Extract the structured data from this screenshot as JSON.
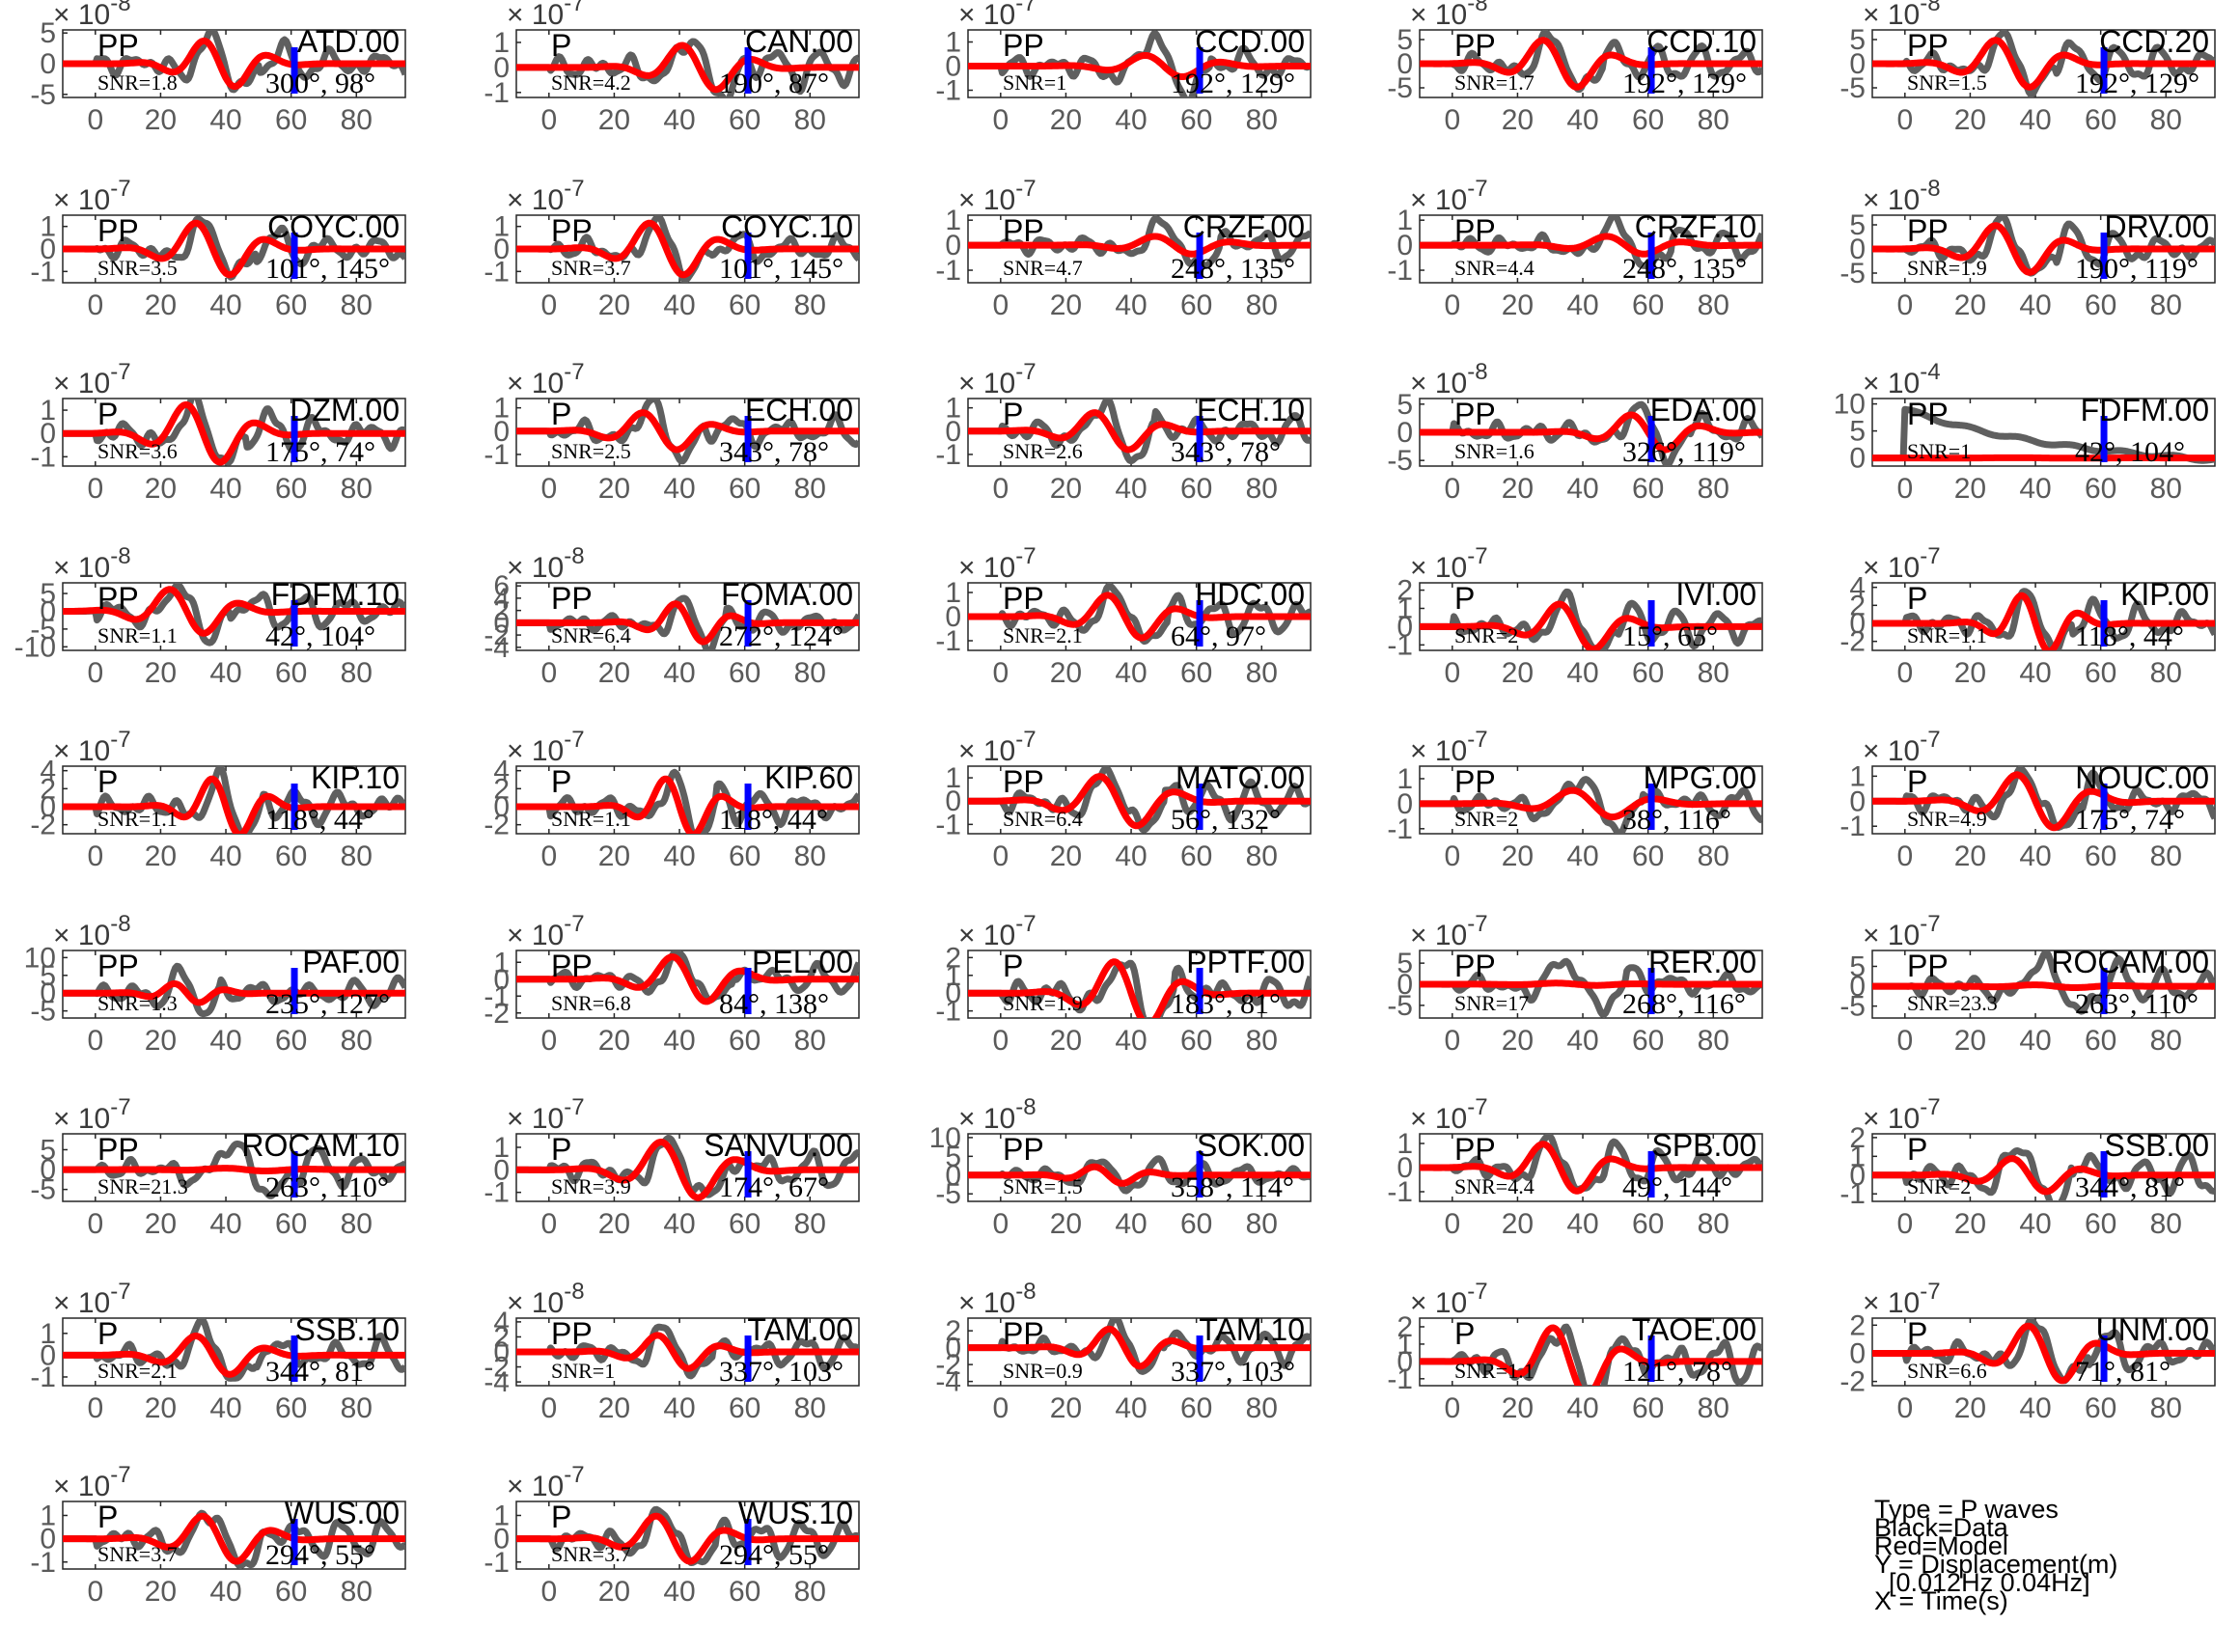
{
  "legend": {
    "line1": "Type = P waves",
    "line2": "Black=Data",
    "line3": "Red=Model",
    "line4": "Y = Displacement(m)",
    "line5": "  [0.012Hz 0.04Hz]",
    "line6": "X = Time(s)"
  },
  "colors": {
    "data": "#5f5f5f",
    "model": "#ff0000",
    "marker": "#0000ff",
    "axes": "#262626"
  },
  "chart_data": {
    "type": "line",
    "x_ticks": [
      0,
      20,
      40,
      60,
      80
    ],
    "xlim": [
      -10,
      95
    ],
    "marker_time": 61,
    "panels": [
      {
        "station": "ATD.00",
        "phase": "PP",
        "snr": "SNR=1.8",
        "azim": "300°, 98°",
        "exp": "-8",
        "yticks": [
          "5",
          "0",
          "-5"
        ],
        "ytv": [
          5,
          0,
          -5
        ],
        "ylim": [
          -5.5,
          5.5
        ],
        "data_amp": 5.0,
        "model_amp": 4.2,
        "t0": 40,
        "period": 20
      },
      {
        "station": "CAN.00",
        "phase": "P",
        "snr": "SNR=4.2",
        "azim": "190°, 87°",
        "exp": "-7",
        "yticks": [
          "1",
          "0",
          "-1"
        ],
        "ytv": [
          1,
          0,
          -1
        ],
        "ylim": [
          -1.2,
          1.5
        ],
        "data_amp": 1.3,
        "model_amp": 1.0,
        "t0": 48,
        "period": 22
      },
      {
        "station": "CCD.00",
        "phase": "PP",
        "snr": "SNR=1",
        "azim": "192°, 129°",
        "exp": "-7",
        "yticks": [
          "1",
          "0",
          "-1"
        ],
        "ytv": [
          1,
          0,
          -1
        ],
        "ylim": [
          -1.3,
          1.5
        ],
        "data_amp": 1.3,
        "model_amp": 0.5,
        "t0": 52,
        "period": 24
      },
      {
        "station": "CCD.10",
        "phase": "PP",
        "snr": "SNR=1.7",
        "azim": "192°, 129°",
        "exp": "-8",
        "yticks": [
          "5",
          "0",
          "-5"
        ],
        "ytv": [
          5,
          0,
          -5
        ],
        "ylim": [
          -7,
          7
        ],
        "data_amp": 6.0,
        "model_amp": 5.5,
        "t0": 35,
        "period": 22
      },
      {
        "station": "CCD.20",
        "phase": "PP",
        "snr": "SNR=1.5",
        "azim": "192°, 129°",
        "exp": "-8",
        "yticks": [
          "5",
          "0",
          "-5"
        ],
        "ytv": [
          5,
          0,
          -5
        ],
        "ylim": [
          -7,
          7
        ],
        "data_amp": 6.0,
        "model_amp": 5.5,
        "t0": 35,
        "period": 22
      },
      {
        "station": "COYC.00",
        "phase": "PP",
        "snr": "SNR=3.5",
        "azim": "101°, 145°",
        "exp": "-7",
        "yticks": [
          "1",
          "0",
          "-1"
        ],
        "ytv": [
          1,
          0,
          -1
        ],
        "ylim": [
          -1.5,
          1.5
        ],
        "data_amp": 1.3,
        "model_amp": 1.3,
        "t0": 38,
        "period": 22
      },
      {
        "station": "COYC.10",
        "phase": "PP",
        "snr": "SNR=3.7",
        "azim": "101°, 145°",
        "exp": "-7",
        "yticks": [
          "1",
          "0",
          "-1"
        ],
        "ytv": [
          1,
          0,
          -1
        ],
        "ylim": [
          -1.5,
          1.5
        ],
        "data_amp": 1.3,
        "model_amp": 1.3,
        "t0": 38,
        "period": 22
      },
      {
        "station": "CRZF.00",
        "phase": "PP",
        "snr": "SNR=4.7",
        "azim": "248°, 135°",
        "exp": "-7",
        "yticks": [
          "1",
          "0",
          "-1"
        ],
        "ytv": [
          1,
          0,
          -1
        ],
        "ylim": [
          -1.5,
          1.2
        ],
        "data_amp": 1.0,
        "model_amp": 0.4,
        "t0": 55,
        "period": 24
      },
      {
        "station": "CRZF.10",
        "phase": "PP",
        "snr": "SNR=4.4",
        "azim": "248°, 135°",
        "exp": "-7",
        "yticks": [
          "1",
          "0",
          "-1"
        ],
        "ytv": [
          1,
          0,
          -1
        ],
        "ylim": [
          -1.5,
          1.2
        ],
        "data_amp": 1.0,
        "model_amp": 0.4,
        "t0": 55,
        "period": 24
      },
      {
        "station": "DRV.00",
        "phase": "PP",
        "snr": "SNR=1.9",
        "azim": "190°, 119°",
        "exp": "-8",
        "yticks": [
          "5",
          "0",
          "-5"
        ],
        "ytv": [
          5,
          0,
          -5
        ],
        "ylim": [
          -7,
          7
        ],
        "data_amp": 6.0,
        "model_amp": 5.5,
        "t0": 35,
        "period": 22
      },
      {
        "station": "DZM.00",
        "phase": "P",
        "snr": "SNR=3.6",
        "azim": "175°, 74°",
        "exp": "-7",
        "yticks": [
          "1",
          "0",
          "-1"
        ],
        "ytv": [
          1,
          0,
          -1
        ],
        "ylim": [
          -1.4,
          1.5
        ],
        "data_amp": 1.4,
        "model_amp": 1.4,
        "t0": 35,
        "period": 22
      },
      {
        "station": "ECH.00",
        "phase": "P",
        "snr": "SNR=2.5",
        "azim": "343°, 78°",
        "exp": "-7",
        "yticks": [
          "1",
          "0",
          "-1"
        ],
        "ytv": [
          1,
          0,
          -1
        ],
        "ylim": [
          -1.5,
          1.4
        ],
        "data_amp": 1.3,
        "model_amp": 0.9,
        "t0": 36,
        "period": 22
      },
      {
        "station": "ECH.10",
        "phase": "P",
        "snr": "SNR=2.6",
        "azim": "343°, 78°",
        "exp": "-7",
        "yticks": [
          "1",
          "0",
          "-1"
        ],
        "ytv": [
          1,
          0,
          -1
        ],
        "ylim": [
          -1.5,
          1.4
        ],
        "data_amp": 1.3,
        "model_amp": 0.9,
        "t0": 36,
        "period": 22
      },
      {
        "station": "EDA.00",
        "phase": "PP",
        "snr": "SNR=1.6",
        "azim": "326°, 119°",
        "exp": "-8",
        "yticks": [
          "5",
          "0",
          "-5"
        ],
        "ytv": [
          5,
          0,
          -5
        ],
        "ylim": [
          -6,
          6
        ],
        "data_amp": 5.0,
        "model_amp": 3.5,
        "t0": 62,
        "period": 22
      },
      {
        "station": "FDFM.00",
        "phase": "PP",
        "snr": "SNR=1",
        "azim": "42°, 104°",
        "exp": "-4",
        "yticks": [
          "10",
          "5",
          "0"
        ],
        "ytv": [
          10,
          5,
          0
        ],
        "ylim": [
          -1.5,
          11
        ],
        "data_amp": 9.0,
        "model_amp": 0.05,
        "t0": 45,
        "period": 40
      },
      {
        "station": "FDFM.10",
        "phase": "PP",
        "snr": "SNR=1.1",
        "azim": "42°, 104°",
        "exp": "-8",
        "yticks": [
          "5",
          "0",
          "-5",
          "-10"
        ],
        "ytv": [
          5,
          0,
          -5,
          -10
        ],
        "ylim": [
          -11,
          8
        ],
        "data_amp": 8.0,
        "model_amp": 7.0,
        "t0": 30,
        "period": 22
      },
      {
        "station": "FOMA.00",
        "phase": "PP",
        "snr": "SNR=6.4",
        "azim": "272°, 124°",
        "exp": "-8",
        "yticks": [
          "6",
          "4",
          "2",
          "0",
          "-2",
          "-4"
        ],
        "ytv": [
          6,
          4,
          2,
          0,
          -2,
          -4
        ],
        "ylim": [
          -4.5,
          6.5
        ],
        "data_amp": 4.0,
        "model_amp": 3.5,
        "t0": 45,
        "period": 18
      },
      {
        "station": "HDC.00",
        "phase": "PP",
        "snr": "SNR=2.1",
        "azim": "64°, 97°",
        "exp": "-7",
        "yticks": [
          "1",
          "0",
          "-1"
        ],
        "ytv": [
          1,
          0,
          -1
        ],
        "ylim": [
          -1.4,
          1.4
        ],
        "data_amp": 1.2,
        "model_amp": 1.0,
        "t0": 40,
        "period": 22
      },
      {
        "station": "IVI.00",
        "phase": "P",
        "snr": "SNR=2",
        "azim": "15°, 65°",
        "exp": "-7",
        "yticks": [
          "2",
          "1",
          "0",
          "-1"
        ],
        "ytv": [
          2,
          1,
          0,
          -1
        ],
        "ylim": [
          -1.3,
          2.4
        ],
        "data_amp": 1.6,
        "model_amp": 1.4,
        "t0": 40,
        "period": 22
      },
      {
        "station": "KIP.00",
        "phase": "P",
        "snr": "SNR=1.1",
        "azim": "118°, 44°",
        "exp": "-7",
        "yticks": [
          "4",
          "2",
          "0",
          "-2"
        ],
        "ytv": [
          4,
          2,
          0,
          -2
        ],
        "ylim": [
          -3,
          4.5
        ],
        "data_amp": 3.5,
        "model_amp": 3.5,
        "t0": 42,
        "period": 18
      },
      {
        "station": "KIP.10",
        "phase": "P",
        "snr": "SNR=1.1",
        "azim": "118°, 44°",
        "exp": "-7",
        "yticks": [
          "4",
          "2",
          "0",
          "-2"
        ],
        "ytv": [
          4,
          2,
          0,
          -2
        ],
        "ylim": [
          -3,
          4.5
        ],
        "data_amp": 3.5,
        "model_amp": 3.5,
        "t0": 42,
        "period": 18
      },
      {
        "station": "KIP.60",
        "phase": "P",
        "snr": "SNR=1.1",
        "azim": "118°, 44°",
        "exp": "-7",
        "yticks": [
          "4",
          "2",
          "0",
          "-2"
        ],
        "ytv": [
          4,
          2,
          0,
          -2
        ],
        "ylim": [
          -3,
          4.5
        ],
        "data_amp": 3.5,
        "model_amp": 3.5,
        "t0": 42,
        "period": 18
      },
      {
        "station": "MATO.00",
        "phase": "PP",
        "snr": "SNR=6.4",
        "azim": "56°, 132°",
        "exp": "-7",
        "yticks": [
          "1",
          "0",
          "-1"
        ],
        "ytv": [
          1,
          0,
          -1
        ],
        "ylim": [
          -1.4,
          1.5
        ],
        "data_amp": 1.3,
        "model_amp": 1.2,
        "t0": 38,
        "period": 24
      },
      {
        "station": "MPG.00",
        "phase": "PP",
        "snr": "SNR=2",
        "azim": "38°, 116°",
        "exp": "-7",
        "yticks": [
          "1",
          "0",
          "-1"
        ],
        "ytv": [
          1,
          0,
          -1
        ],
        "ylim": [
          -1.2,
          1.5
        ],
        "data_amp": 1.1,
        "model_amp": 0.6,
        "t0": 45,
        "period": 26
      },
      {
        "station": "NOUC.00",
        "phase": "P",
        "snr": "SNR=4.9",
        "azim": "175°, 74°",
        "exp": "-7",
        "yticks": [
          "1",
          "0",
          "-1"
        ],
        "ytv": [
          1,
          0,
          -1
        ],
        "ylim": [
          -1.3,
          1.4
        ],
        "data_amp": 1.2,
        "model_amp": 1.2,
        "t0": 42,
        "period": 24
      },
      {
        "station": "PAF.00",
        "phase": "PP",
        "snr": "SNR=1.3",
        "azim": "235°, 127°",
        "exp": "-8",
        "yticks": [
          "10",
          "5",
          "0",
          "-5"
        ],
        "ytv": [
          10,
          5,
          0,
          -5
        ],
        "ylim": [
          -7,
          12
        ],
        "data_amp": 7.0,
        "model_amp": 3.0,
        "t0": 30,
        "period": 16
      },
      {
        "station": "PEL.00",
        "phase": "PP",
        "snr": "SNR=6.8",
        "azim": "84°, 138°",
        "exp": "-7",
        "yticks": [
          "1",
          "0",
          "-1",
          "-2"
        ],
        "ytv": [
          1,
          0,
          -1,
          -2
        ],
        "ylim": [
          -2.3,
          1.7
        ],
        "data_amp": 1.5,
        "model_amp": 1.5,
        "t0": 45,
        "period": 22
      },
      {
        "station": "PPTF.00",
        "phase": "P",
        "snr": "SNR=1.9",
        "azim": "183°, 81°",
        "exp": "-7",
        "yticks": [
          "2",
          "1",
          "0",
          "-1"
        ],
        "ytv": [
          2,
          1,
          0,
          -1
        ],
        "ylim": [
          -1.4,
          2.4
        ],
        "data_amp": 2.0,
        "model_amp": 2.0,
        "t0": 42,
        "period": 22
      },
      {
        "station": "RER.00",
        "phase": "PP",
        "snr": "SNR=17",
        "azim": "268°, 116°",
        "exp": "-7",
        "yticks": [
          "5",
          "0",
          "-5"
        ],
        "ytv": [
          5,
          0,
          -5
        ],
        "ylim": [
          -8,
          8
        ],
        "data_amp": 6.0,
        "model_amp": 0.3,
        "t0": 40,
        "period": 26
      },
      {
        "station": "ROCAM.00",
        "phase": "PP",
        "snr": "SNR=23.3",
        "azim": "263°, 110°",
        "exp": "-7",
        "yticks": [
          "5",
          "0",
          "-5"
        ],
        "ytv": [
          5,
          0,
          -5
        ],
        "ylim": [
          -8,
          9
        ],
        "data_amp": 7.0,
        "model_amp": 0.4,
        "t0": 48,
        "period": 26
      },
      {
        "station": "ROCAM.10",
        "phase": "PP",
        "snr": "SNR=21.3",
        "azim": "263°, 110°",
        "exp": "-7",
        "yticks": [
          "5",
          "0",
          "-5"
        ],
        "ytv": [
          5,
          0,
          -5
        ],
        "ylim": [
          -8,
          9
        ],
        "data_amp": 7.0,
        "model_amp": 0.4,
        "t0": 48,
        "period": 26
      },
      {
        "station": "SANVU.00",
        "phase": "P",
        "snr": "SNR=3.9",
        "azim": "174°, 67°",
        "exp": "-7",
        "yticks": [
          "1",
          "0",
          "-1"
        ],
        "ytv": [
          1,
          0,
          -1
        ],
        "ylim": [
          -1.4,
          1.6
        ],
        "data_amp": 1.4,
        "model_amp": 1.4,
        "t0": 42,
        "period": 24
      },
      {
        "station": "SOK.00",
        "phase": "PP",
        "snr": "SNR=1.5",
        "azim": "358°, 114°",
        "exp": "-8",
        "yticks": [
          "10",
          "5",
          "0",
          "-5"
        ],
        "ytv": [
          10,
          5,
          0,
          -5
        ],
        "ylim": [
          -7,
          11
        ],
        "data_amp": 5.0,
        "model_amp": 2.5,
        "t0": 35,
        "period": 18
      },
      {
        "station": "SPB.00",
        "phase": "PP",
        "snr": "SNR=4.4",
        "azim": "49°, 144°",
        "exp": "-7",
        "yticks": [
          "1",
          "0",
          "-1"
        ],
        "ytv": [
          1,
          0,
          -1
        ],
        "ylim": [
          -1.4,
          1.4
        ],
        "data_amp": 1.2,
        "model_amp": 1.1,
        "t0": 35,
        "period": 22
      },
      {
        "station": "SSB.00",
        "phase": "P",
        "snr": "SNR=2",
        "azim": "344°, 81°",
        "exp": "-7",
        "yticks": [
          "2",
          "1",
          "0",
          "-1"
        ],
        "ytv": [
          2,
          1,
          0,
          -1
        ],
        "ylim": [
          -1.4,
          2.2
        ],
        "data_amp": 1.8,
        "model_amp": 1.0,
        "t0": 40,
        "period": 22
      },
      {
        "station": "SSB.10",
        "phase": "P",
        "snr": "SNR=2.1",
        "azim": "344°, 81°",
        "exp": "-7",
        "yticks": [
          "1",
          "0",
          "-1"
        ],
        "ytv": [
          1,
          0,
          -1
        ],
        "ylim": [
          -1.4,
          1.7
        ],
        "data_amp": 1.4,
        "model_amp": 1.0,
        "t0": 38,
        "period": 22
      },
      {
        "station": "TAM.00",
        "phase": "PP",
        "snr": "SNR=1",
        "azim": "337°, 103°",
        "exp": "-8",
        "yticks": [
          "4",
          "2",
          "0",
          "-2",
          "-4"
        ],
        "ytv": [
          4,
          2,
          0,
          -2,
          -4
        ],
        "ylim": [
          -4.5,
          4.5
        ],
        "data_amp": 3.5,
        "model_amp": 2.5,
        "t0": 40,
        "period": 20
      },
      {
        "station": "TAM.10",
        "phase": "PP",
        "snr": "SNR=0.9",
        "azim": "337°, 103°",
        "exp": "-8",
        "yticks": [
          "2",
          "0",
          "-2",
          "-4"
        ],
        "ytv": [
          2,
          0,
          -2,
          -4
        ],
        "ylim": [
          -4.5,
          3.5
        ],
        "data_amp": 3.0,
        "model_amp": 2.5,
        "t0": 40,
        "period": 20
      },
      {
        "station": "TAOE.00",
        "phase": "P",
        "snr": "SNR=1.1",
        "azim": "121°, 78°",
        "exp": "-7",
        "yticks": [
          "2",
          "1",
          "0",
          "-1"
        ],
        "ytv": [
          2,
          1,
          0,
          -1
        ],
        "ylim": [
          -1.4,
          2.5
        ],
        "data_amp": 2.2,
        "model_amp": 2.2,
        "t0": 38,
        "period": 22
      },
      {
        "station": "UNM.00",
        "phase": "P",
        "snr": "SNR=6.6",
        "azim": "71°, 81°",
        "exp": "-7",
        "yticks": [
          "2",
          "0",
          "-2"
        ],
        "ytv": [
          2,
          0,
          -2
        ],
        "ylim": [
          -2.3,
          2.5
        ],
        "data_amp": 2.2,
        "model_amp": 2.2,
        "t0": 45,
        "period": 22
      },
      {
        "station": "WUS.00",
        "phase": "P",
        "snr": "SNR=3.7",
        "azim": "294°, 55°",
        "exp": "-7",
        "yticks": [
          "1",
          "0",
          "-1"
        ],
        "ytv": [
          1,
          0,
          -1
        ],
        "ylim": [
          -1.3,
          1.6
        ],
        "data_amp": 1.3,
        "model_amp": 1.1,
        "t0": 40,
        "period": 22
      },
      {
        "station": "WUS.10",
        "phase": "P",
        "snr": "SNR=3.7",
        "azim": "294°, 55°",
        "exp": "-7",
        "yticks": [
          "1",
          "0",
          "-1"
        ],
        "ytv": [
          1,
          0,
          -1
        ],
        "ylim": [
          -1.3,
          1.6
        ],
        "data_amp": 1.3,
        "model_amp": 1.1,
        "t0": 40,
        "period": 22
      }
    ]
  }
}
